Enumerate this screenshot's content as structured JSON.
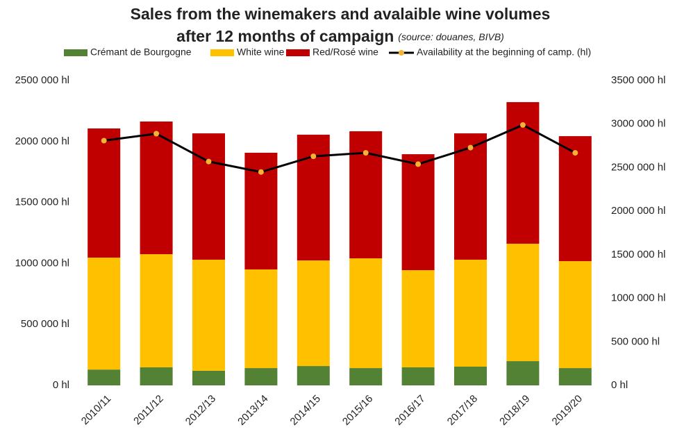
{
  "chart_data": {
    "type": "bar",
    "stacked": true,
    "title": [
      "Sales from the winemakers and avalaible wine volumes",
      "after 12 months of campaign"
    ],
    "subtitle": "(source: douanes, BIVB)",
    "categories": [
      "2010/11",
      "2011/12",
      "2012/13",
      "2013/14",
      "2014/15",
      "2015/16",
      "2016/17",
      "2017/18",
      "2018/19",
      "2019/20"
    ],
    "series": [
      {
        "name": "Crémant de Bourgogne",
        "color": "#548235",
        "values": [
          130000,
          148000,
          120000,
          142000,
          159000,
          142000,
          148000,
          154000,
          199000,
          142000
        ]
      },
      {
        "name": "White wine",
        "color": "#ffc000",
        "values": [
          918000,
          928000,
          911000,
          809000,
          866000,
          900000,
          797000,
          877000,
          963000,
          877000
        ]
      },
      {
        "name": "Red/Rosé wine",
        "color": "#c00000",
        "values": [
          1059000,
          1088000,
          1036000,
          957000,
          1031000,
          1042000,
          951000,
          1036000,
          1161000,
          1025000
        ]
      },
      {
        "name": "Availability at the beginning of camp. (hl)",
        "type": "line",
        "axis": "y2",
        "color": "#000000",
        "marker_color": "#f5b335",
        "values": [
          2810000,
          2890000,
          2570000,
          2450000,
          2630000,
          2670000,
          2540000,
          2730000,
          2990000,
          2670000
        ]
      }
    ],
    "ylim": [
      0,
      2500000
    ],
    "yticks": [
      {
        "value": 0,
        "label": "0 hl"
      },
      {
        "value": 500000,
        "label": "500 000 hl"
      },
      {
        "value": 1000000,
        "label": "1000 000 hl"
      },
      {
        "value": 1500000,
        "label": "1500 000 hl"
      },
      {
        "value": 2000000,
        "label": "2000 000 hl"
      },
      {
        "value": 2500000,
        "label": "2500 000 hl"
      }
    ],
    "y2lim": [
      0,
      3500000
    ],
    "y2ticks": [
      {
        "value": 0,
        "label": "0 hl"
      },
      {
        "value": 500000,
        "label": "500 000 hl"
      },
      {
        "value": 1000000,
        "label": "1000 000 hl"
      },
      {
        "value": 1500000,
        "label": "1500 000 hl"
      },
      {
        "value": 2000000,
        "label": "2000 000 hl"
      },
      {
        "value": 2500000,
        "label": "2500 000 hl"
      },
      {
        "value": 3000000,
        "label": "3000 000 hl"
      },
      {
        "value": 3500000,
        "label": "3500 000 hl"
      }
    ],
    "grid": false,
    "legend": "top"
  }
}
